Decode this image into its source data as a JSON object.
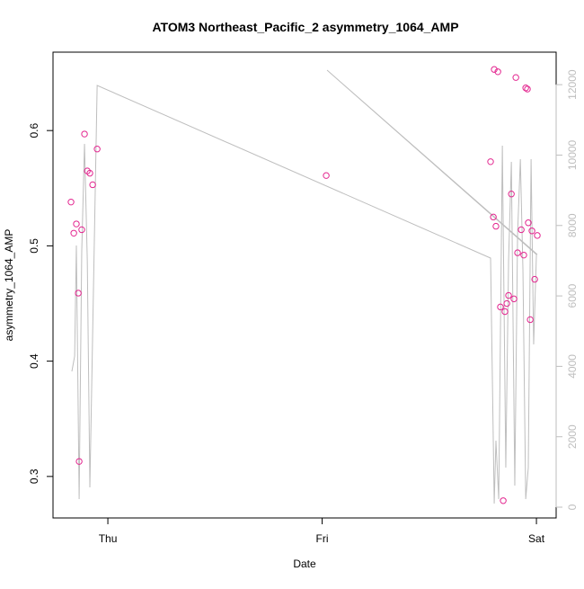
{
  "chart_data": {
    "type": "scatter",
    "title": "ATOM3 Northeast_Pacific_2 asymmetry_1064_AMP",
    "xlabel": "Date",
    "ylabel": "asymmetry_1064_AMP",
    "xlim": [
      -0.256,
      2.092
    ],
    "xticks": [
      {
        "value": 0,
        "label": "Thu"
      },
      {
        "value": 1,
        "label": "Fri"
      },
      {
        "value": 2,
        "label": "Sat"
      }
    ],
    "ylim": [
      0.264,
      0.668
    ],
    "yticks": [
      0.3,
      0.4,
      0.5,
      0.6
    ],
    "y2lim": [
      -306,
      12923
    ],
    "y2ticks": [
      0,
      2000,
      4000,
      6000,
      8000,
      10000,
      12000
    ],
    "series": [
      {
        "type": "scatter",
        "color": "#e3268f",
        "x": [
          -0.172,
          -0.159,
          -0.147,
          -0.138,
          -0.134,
          -0.122,
          -0.109,
          -0.096,
          -0.084,
          -0.071,
          -0.05,
          1.019,
          1.786,
          1.799,
          1.803,
          1.811,
          1.82,
          1.832,
          1.845,
          1.853,
          1.862,
          1.87,
          1.883,
          1.895,
          1.904,
          1.912,
          1.929,
          1.941,
          1.95,
          1.958,
          1.962,
          1.971,
          1.979,
          1.992,
          2.004
        ],
        "values": [
          0.538,
          0.511,
          0.519,
          0.459,
          0.313,
          0.514,
          0.597,
          0.565,
          0.563,
          0.553,
          0.584,
          0.561,
          0.573,
          0.525,
          0.653,
          0.517,
          0.651,
          0.447,
          0.279,
          0.443,
          0.45,
          0.457,
          0.545,
          0.454,
          0.646,
          0.494,
          0.514,
          0.492,
          0.637,
          0.636,
          0.52,
          0.436,
          0.513,
          0.471,
          0.509
        ]
      },
      {
        "type": "line",
        "axis": "y2",
        "color": "#bebebe",
        "x": [
          -0.168,
          -0.155,
          -0.147,
          -0.134,
          -0.122,
          -0.109,
          -0.096,
          -0.084,
          -0.05,
          1.786,
          1.803,
          1.811,
          1.824,
          1.841,
          1.857,
          1.87,
          1.883,
          1.899,
          1.912,
          1.925,
          1.937,
          1.95,
          1.962,
          1.975,
          1.987,
          2.0,
          1.023,
          2.004
        ],
        "values": [
          3857,
          4291,
          7433,
          230,
          7253,
          10318,
          6998,
          562,
          11978,
          7075,
          102,
          1890,
          230,
          10267,
          1124,
          6998,
          9807,
          613,
          7764,
          9884,
          6743,
          230,
          1124,
          9884,
          4623,
          7177,
          12412,
          7177
        ]
      }
    ]
  }
}
